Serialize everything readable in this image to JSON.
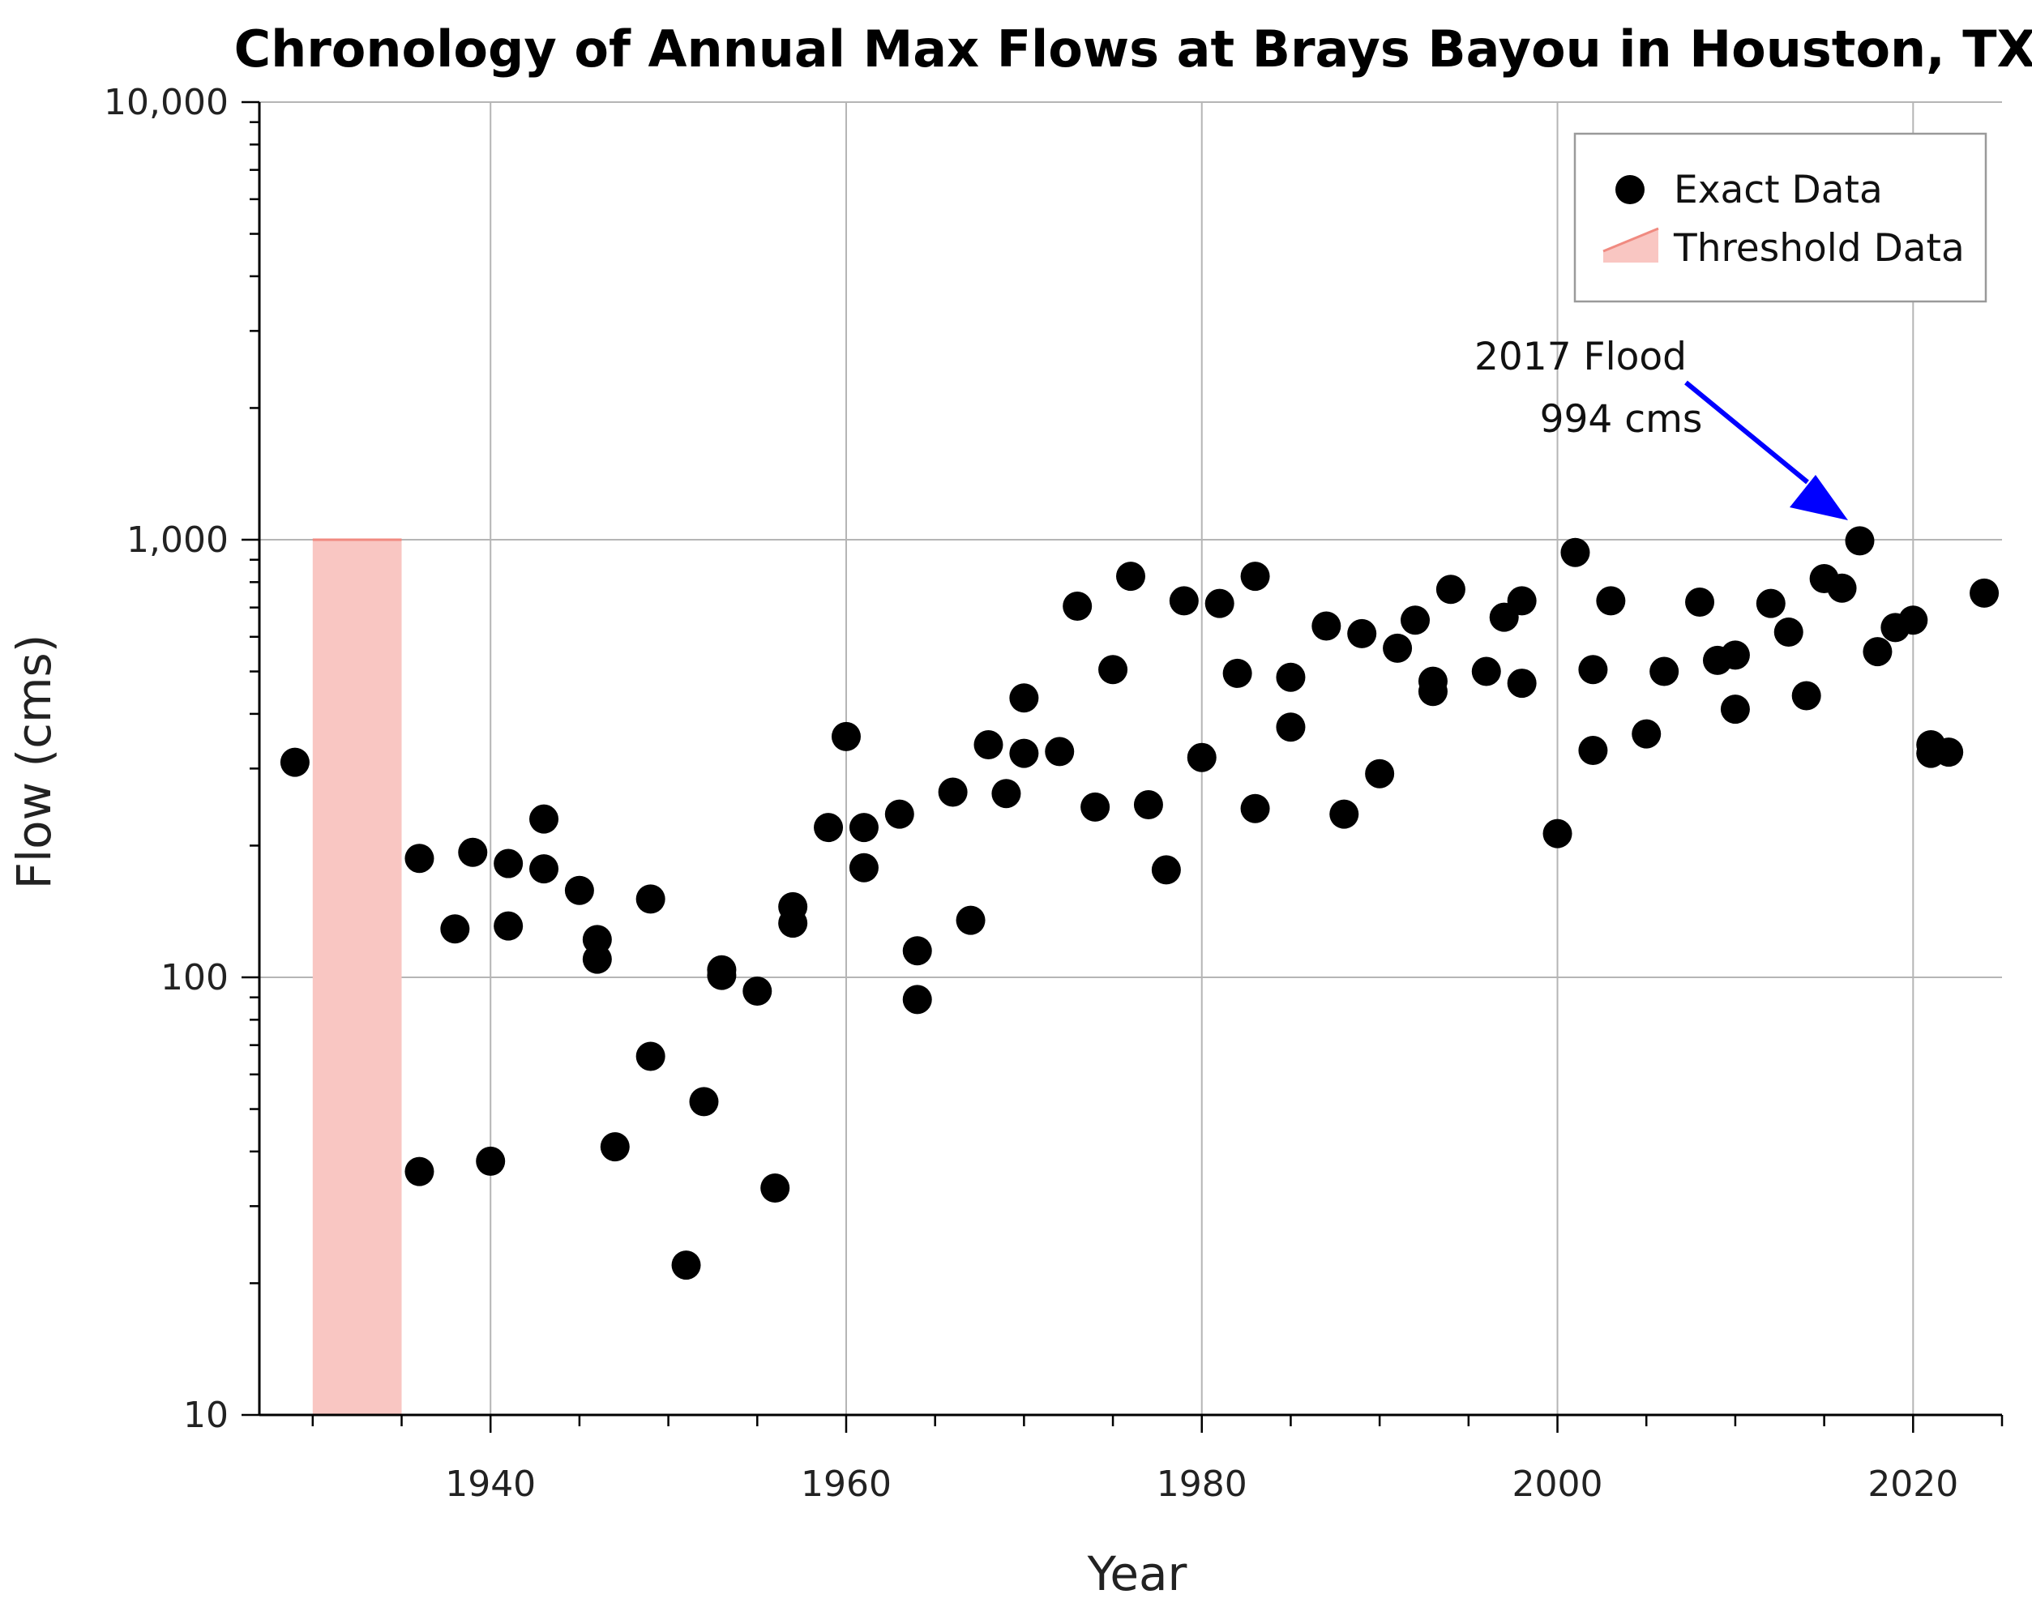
{
  "chart_data": {
    "type": "scatter",
    "title": "Chronology of Annual Max Flows at Brays Bayou in Houston, TX",
    "xlabel": "Year",
    "ylabel": "Flow (cms)",
    "xlim": [
      1927,
      2025
    ],
    "ylim": [
      10,
      10000
    ],
    "yscale": "log",
    "grid": true,
    "legend_position": "top-right",
    "x_ticks": [
      1940,
      1960,
      1980,
      2000,
      2020
    ],
    "x_tick_labels": [
      "1940",
      "1960",
      "1980",
      "2000",
      "2020"
    ],
    "y_ticks": [
      10,
      100,
      1000,
      10000
    ],
    "y_tick_labels": [
      "10",
      "100",
      "1,000",
      "10,000"
    ],
    "legend": {
      "exact_label": "Exact Data",
      "threshold_label": "Threshold Data"
    },
    "threshold": {
      "x_start": 1930,
      "x_end": 1935,
      "y_low": 10,
      "y_high": 1000,
      "color": "#f9c6c2",
      "edge_color": "#f08a80"
    },
    "annotation": {
      "line1": "2017 Flood",
      "line2": "994 cms",
      "x": 2017,
      "y": 994,
      "arrow_color": "#0000ff"
    },
    "series": [
      {
        "name": "Exact Data",
        "color": "#000000",
        "points": [
          [
            1929,
            310
          ],
          [
            1936,
            187
          ],
          [
            1936,
            36
          ],
          [
            1938,
            129
          ],
          [
            1939,
            193
          ],
          [
            1940,
            38
          ],
          [
            1941,
            182
          ],
          [
            1941,
            131
          ],
          [
            1943,
            230
          ],
          [
            1943,
            177
          ],
          [
            1945,
            158
          ],
          [
            1946,
            122
          ],
          [
            1946,
            110
          ],
          [
            1947,
            41
          ],
          [
            1949,
            151
          ],
          [
            1949,
            66
          ],
          [
            1951,
            22
          ],
          [
            1952,
            52
          ],
          [
            1953,
            104
          ],
          [
            1953,
            101
          ],
          [
            1955,
            93
          ],
          [
            1956,
            33
          ],
          [
            1957,
            145
          ],
          [
            1957,
            133
          ],
          [
            1959,
            220
          ],
          [
            1960,
            355
          ],
          [
            1961,
            220
          ],
          [
            1961,
            178
          ],
          [
            1963,
            236
          ],
          [
            1964,
            115
          ],
          [
            1964,
            89
          ],
          [
            1966,
            265
          ],
          [
            1967,
            135
          ],
          [
            1968,
            340
          ],
          [
            1969,
            263
          ],
          [
            1970,
            435
          ],
          [
            1970,
            325
          ],
          [
            1972,
            328
          ],
          [
            1973,
            705
          ],
          [
            1974,
            245
          ],
          [
            1975,
            505
          ],
          [
            1976,
            825
          ],
          [
            1977,
            248
          ],
          [
            1978,
            176
          ],
          [
            1979,
            725
          ],
          [
            1980,
            318
          ],
          [
            1981,
            715
          ],
          [
            1982,
            495
          ],
          [
            1983,
            825
          ],
          [
            1983,
            243
          ],
          [
            1985,
            485
          ],
          [
            1985,
            373
          ],
          [
            1987,
            635
          ],
          [
            1988,
            236
          ],
          [
            1989,
            610
          ],
          [
            1990,
            292
          ],
          [
            1991,
            565
          ],
          [
            1992,
            655
          ],
          [
            1993,
            475
          ],
          [
            1993,
            450
          ],
          [
            1994,
            770
          ],
          [
            1996,
            500
          ],
          [
            1997,
            665
          ],
          [
            1998,
            725
          ],
          [
            1998,
            470
          ],
          [
            2000,
            213
          ],
          [
            2001,
            935
          ],
          [
            2002,
            505
          ],
          [
            2002,
            330
          ],
          [
            2003,
            725
          ],
          [
            2005,
            360
          ],
          [
            2006,
            500
          ],
          [
            2008,
            720
          ],
          [
            2009,
            530
          ],
          [
            2010,
            545
          ],
          [
            2010,
            410
          ],
          [
            2012,
            715
          ],
          [
            2013,
            615
          ],
          [
            2014,
            440
          ],
          [
            2015,
            815
          ],
          [
            2016,
            775
          ],
          [
            2017,
            994
          ],
          [
            2018,
            555
          ],
          [
            2019,
            630
          ],
          [
            2020,
            655
          ],
          [
            2021,
            340
          ],
          [
            2021,
            325
          ],
          [
            2022,
            327
          ],
          [
            2024,
            755
          ]
        ]
      }
    ]
  }
}
